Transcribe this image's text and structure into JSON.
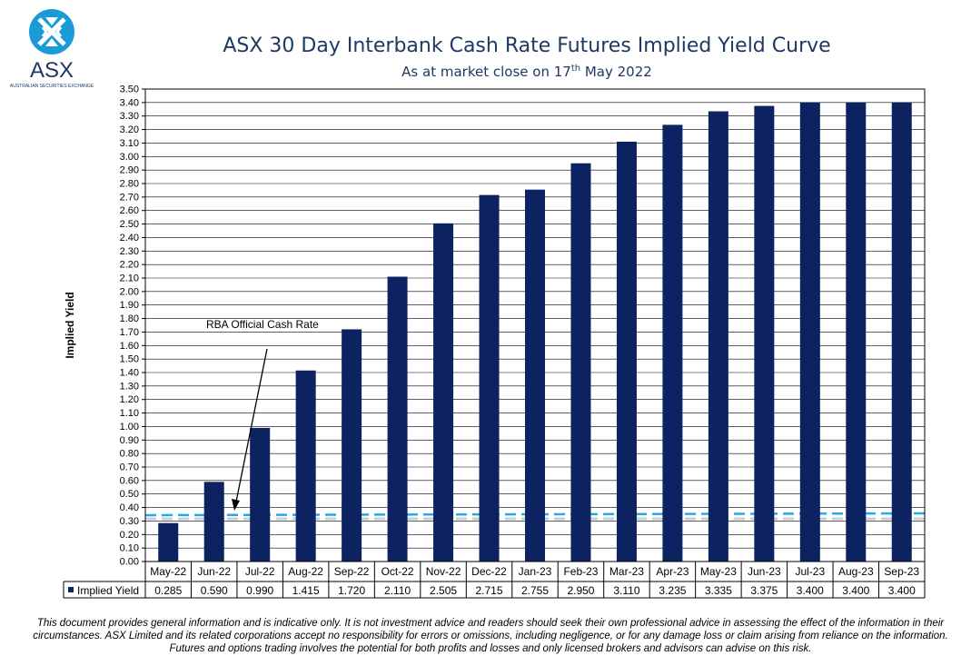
{
  "header": {
    "logo_text": "ASX",
    "logo_subtext": "AUSTRALIAN SECURITIES EXCHANGE",
    "title": "ASX 30 Day Interbank Cash Rate Futures Implied Yield Curve",
    "subtitle_prefix": "As at market close on 17",
    "subtitle_sup": "th",
    "subtitle_suffix": " May 2022"
  },
  "chart_data": {
    "type": "bar",
    "ylabel": "Implied Yield",
    "ylim": [
      0,
      3.5
    ],
    "ytick_step": 0.1,
    "grid": true,
    "categories": [
      "May-22",
      "Jun-22",
      "Jul-22",
      "Aug-22",
      "Sep-22",
      "Oct-22",
      "Nov-22",
      "Dec-22",
      "Jan-23",
      "Feb-23",
      "Mar-23",
      "Apr-23",
      "May-23",
      "Jun-23",
      "Jul-23",
      "Aug-23",
      "Sep-23"
    ],
    "series": [
      {
        "name": "Implied Yield",
        "color": "#0d2260",
        "values": [
          0.285,
          0.59,
          0.99,
          1.415,
          1.72,
          2.11,
          2.505,
          2.715,
          2.755,
          2.95,
          3.11,
          3.235,
          3.335,
          3.375,
          3.4,
          3.4,
          3.4
        ],
        "labels": [
          "0.285",
          "0.590",
          "0.990",
          "1.415",
          "1.720",
          "2.110",
          "2.505",
          "2.715",
          "2.755",
          "2.950",
          "3.110",
          "3.235",
          "3.335",
          "3.375",
          "3.400",
          "3.400",
          "3.400"
        ]
      }
    ],
    "reference_line": {
      "value": 0.35,
      "color": "#29a8e0",
      "style": "dashed"
    },
    "annotation": {
      "text": "RBA Official Cash Rate",
      "arrow_to_value": 0.35
    },
    "legend": "data-table"
  },
  "disclaimer": "This document provides general information and is indicative only. It is not investment advice and readers should seek their own professional advice in assessing the effect of the information in their circumstances. ASX Limited and its related corporations accept no responsibility for errors or omissions, including negligence, or for any damage loss or claim arising from reliance on the information. Futures and options trading involves the potential for both profits and losses and only licensed brokers and advisors can advise on this risk."
}
